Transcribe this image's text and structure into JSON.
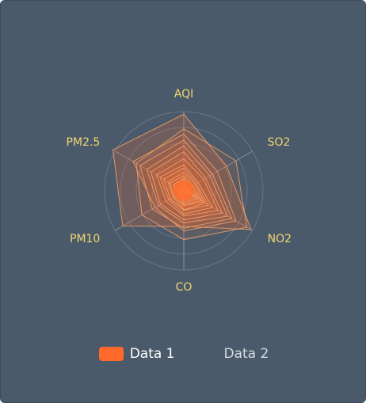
{
  "colors": {
    "panel": "#4a5a6a",
    "panel_border": "#3e4b58",
    "axis": "#9aa2aa",
    "axis_label": "#f2d66f",
    "series_1": "#ff6a2a",
    "series_1_stroke": "#f3a36f",
    "ring": "#70808f"
  },
  "chart_data": {
    "type": "radar",
    "axes": [
      "AQI",
      "SO2",
      "NO2",
      "CO",
      "PM10",
      "PM2.5"
    ],
    "max_values": [
      300,
      200,
      100,
      3,
      200,
      150
    ],
    "legend": [
      "Data 1",
      "Data 2"
    ],
    "legend_position": "bottom-center",
    "series": [
      {
        "name": "Data 1",
        "polygons": [
          [
            290,
            125,
            98,
            1.35,
            178,
            155
          ],
          [
            235,
            152,
            92,
            1.85,
            122,
            104
          ],
          [
            215,
            98,
            76,
            1.52,
            84,
            111
          ],
          [
            192,
            84,
            70,
            1.42,
            92,
            96
          ],
          [
            170,
            76,
            64,
            1.22,
            74,
            81
          ],
          [
            148,
            64,
            56,
            1.1,
            68,
            72
          ],
          [
            121,
            58,
            50,
            0.95,
            52,
            60
          ],
          [
            98,
            42,
            42,
            0.88,
            44,
            52
          ],
          [
            86,
            36,
            36,
            0.74,
            39,
            44
          ],
          [
            70,
            33,
            31,
            0.72,
            31,
            35
          ],
          [
            57,
            27,
            28,
            0.56,
            29,
            30
          ],
          [
            48,
            22,
            25,
            0.52,
            23,
            23
          ],
          [
            42,
            18,
            21,
            0.45,
            19,
            20
          ],
          [
            34,
            14,
            18,
            0.39,
            16,
            16
          ],
          [
            29,
            11,
            15,
            0.32,
            13,
            13
          ],
          [
            24,
            9,
            12,
            0.3,
            11,
            11
          ],
          [
            18,
            6,
            9,
            0.22,
            8,
            8
          ],
          [
            15,
            5,
            7,
            0.18,
            6,
            6
          ],
          [
            12,
            4,
            6,
            0.14,
            5,
            5
          ],
          [
            8,
            3,
            4,
            0.1,
            3,
            3
          ]
        ]
      },
      {
        "name": "Data 2",
        "polygons": []
      }
    ]
  }
}
